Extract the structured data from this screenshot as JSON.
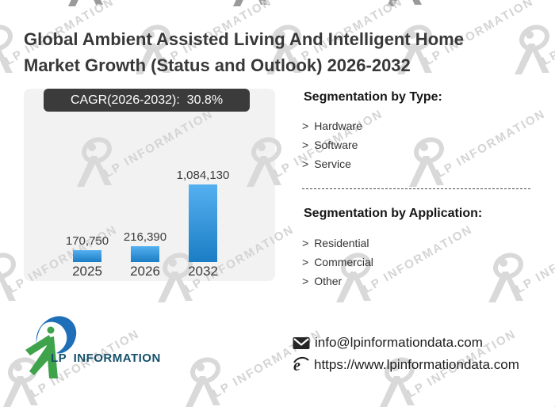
{
  "page": {
    "background": "#ffffff"
  },
  "title": "Global Ambient Assisted Living And Intelligent Home Market Growth (Status and Outlook) 2026-2032",
  "chart_data": {
    "type": "bar",
    "title": "CAGR(2026-2032):  30.8%",
    "categories": [
      "2025",
      "2026",
      "2032"
    ],
    "values": [
      170750,
      216390,
      1084130
    ],
    "value_labels": [
      "170,750",
      "216,390",
      "1,084,130"
    ],
    "ylim": [
      0,
      1084130
    ],
    "grid": false,
    "legend": false,
    "colors": {
      "bar_top": "#55b0f0",
      "bar_bottom": "#1b7dc4",
      "panel_bg": "#f2f2f2",
      "banner_bg": "#3b3b3b",
      "banner_text": "#ffffff"
    }
  },
  "ui": {
    "marker": ">"
  },
  "segmentation_type": {
    "heading": "Segmentation by Type:",
    "items": [
      "Hardware",
      "Software",
      "Service"
    ]
  },
  "segmentation_application": {
    "heading": "Segmentation by Application:",
    "items": [
      "Residential",
      "Commercial",
      "Other"
    ]
  },
  "watermark": {
    "text": "LP INFORMATION"
  },
  "footer": {
    "logo_text": "LP INFORMATION",
    "email": "info@lpinformationdata.com",
    "website": "https://www.lpinformationdata.com"
  }
}
